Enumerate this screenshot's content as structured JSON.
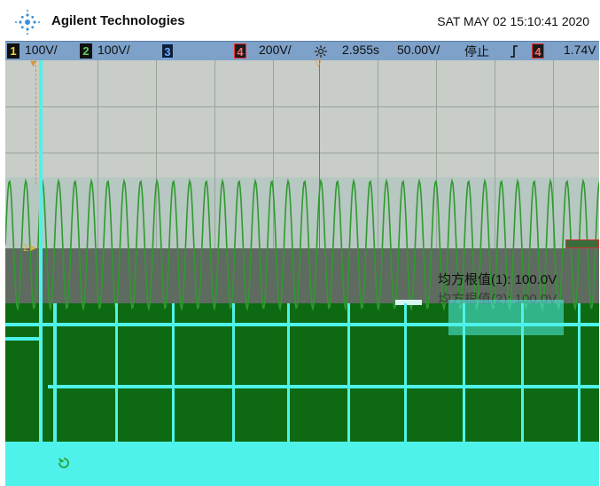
{
  "header": {
    "brand": "Agilent Technologies",
    "datetime": "SAT MAY 02 15:10:41 2020"
  },
  "status": {
    "ch1_num": "1",
    "ch1_scale": "100V/",
    "ch2_num": "2",
    "ch2_scale": "100V/",
    "ch3_num": "3",
    "ch4_num": "4",
    "ch4_scale": "200V/",
    "time_delay": "2.955s",
    "time_scale": "50.00V/",
    "run_state": "停止",
    "trigger_icon": "trigger-edge-icon",
    "trig_ch_num": "4",
    "trig_level": "1.74V"
  },
  "measurements": {
    "rms1_label": "均方根值(1):",
    "rms1_value": "100.0V",
    "rms2_label": "均方根值(2):",
    "rms2_value": "100.0V"
  },
  "softkeys": [
    "",
    "",
    "",
    "",
    "",
    "",
    ""
  ],
  "colors": {
    "ch1": "#f3d34a",
    "ch2": "#59d15a",
    "ch3": "#6fa8ff",
    "ch4": "#ff6b6b",
    "status_bar": "#7da1c8",
    "grid_bg": "#c8cdc8",
    "menu_bg": "#0e6a12",
    "softkey_bg": "#4ff2ea"
  }
}
